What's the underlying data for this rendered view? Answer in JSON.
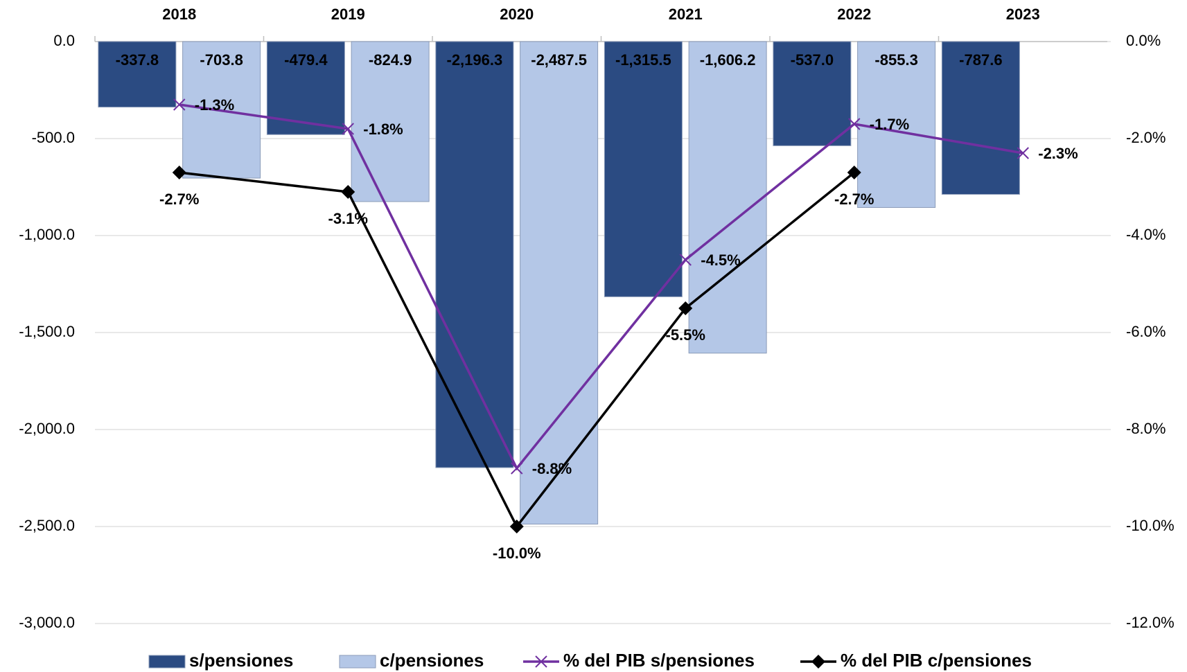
{
  "chart_data": {
    "type": "bar-line",
    "categories": [
      "2018",
      "2019",
      "2020",
      "2021",
      "2022",
      "2023"
    ],
    "ylim": [
      -3000,
      0
    ],
    "yticks": [
      {
        "value": 0,
        "label": "0.0"
      },
      {
        "value": -500,
        "label": "-500.0"
      },
      {
        "value": -1000,
        "label": "-1,000.0"
      },
      {
        "value": -1500,
        "label": "-1,500.0"
      },
      {
        "value": -2000,
        "label": "-2,000.0"
      },
      {
        "value": -2500,
        "label": "-2,500.0"
      },
      {
        "value": -3000,
        "label": "-3,000.0"
      }
    ],
    "y2lim": [
      -12,
      0
    ],
    "y2ticks": [
      {
        "value": 0,
        "label": "0.0%"
      },
      {
        "value": -2,
        "label": "-2.0%"
      },
      {
        "value": -4,
        "label": "-4.0%"
      },
      {
        "value": -6,
        "label": "-6.0%"
      },
      {
        "value": -8,
        "label": "-8.0%"
      },
      {
        "value": -10,
        "label": "-10.0%"
      },
      {
        "value": -12,
        "label": "-12.0%"
      }
    ],
    "grid": true,
    "legend": "bottom",
    "series": [
      {
        "name": "s/pensiones",
        "type": "bar",
        "color": "#2b4b82",
        "values": [
          -337.8,
          -479.4,
          -2196.3,
          -1315.5,
          -537.0,
          -787.6
        ],
        "value_labels": [
          "-337.8",
          "-479.4",
          "-2,196.3",
          "-1,315.5",
          "-537.0",
          "-787.6"
        ]
      },
      {
        "name": "c/pensiones",
        "type": "bar",
        "color": "#b4c7e7",
        "values": [
          -703.8,
          -824.9,
          -2487.5,
          -1606.2,
          -855.3,
          null
        ],
        "value_labels": [
          "-703.8",
          "-824.9",
          "-2,487.5",
          "-1,606.2",
          "-855.3",
          null
        ]
      },
      {
        "name": "% del PIB s/pensiones",
        "type": "line",
        "axis": "y2",
        "color": "#7030a0",
        "marker": "x",
        "values": [
          -1.3,
          -1.8,
          -8.8,
          -4.5,
          -1.7,
          -2.3
        ],
        "value_labels": [
          "-1.3%",
          "-1.8%",
          "-8.8%",
          "-4.5%",
          "-1.7%",
          "-2.3%"
        ]
      },
      {
        "name": "% del PIB c/pensiones",
        "type": "line",
        "axis": "y2",
        "color": "#000000",
        "marker": "diamond",
        "values": [
          -2.7,
          -3.1,
          -10.0,
          -5.5,
          -2.7,
          null
        ],
        "value_labels": [
          "-2.7%",
          "-3.1%",
          "-10.0%",
          "-5.5%",
          "-2.7%",
          null
        ]
      }
    ]
  }
}
